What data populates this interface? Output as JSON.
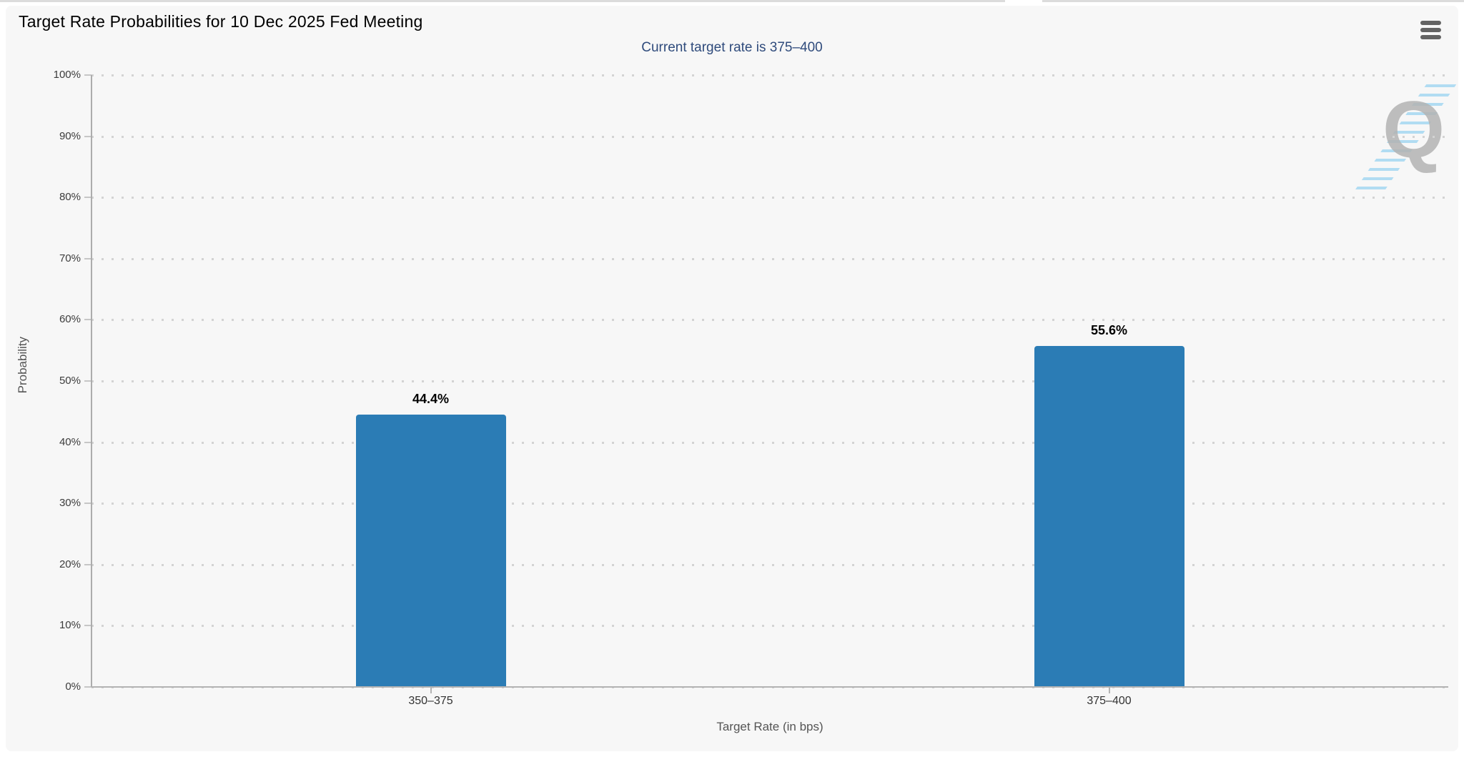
{
  "chart": {
    "title": "Target Rate Probabilities for 10 Dec 2025 Fed Meeting",
    "subtitle": "Current target rate is 375–400",
    "subtitle_color": "#2f4b7c",
    "y_axis_title": "Probability",
    "x_axis_title": "Target Rate (in bps)",
    "menu_icon": "hamburger-menu-icon",
    "watermark_letter": "Q"
  },
  "chart_data": {
    "type": "bar",
    "categories": [
      "350–375",
      "375–400"
    ],
    "values": [
      44.4,
      55.6
    ],
    "value_labels": [
      "44.4%",
      "55.6%"
    ],
    "title": "Target Rate Probabilities for 10 Dec 2025 Fed Meeting",
    "subtitle": "Current target rate is 375–400",
    "xlabel": "Target Rate (in bps)",
    "ylabel": "Probability",
    "ylim": [
      0,
      100
    ],
    "y_tick_step": 10,
    "y_tick_labels": [
      "0%",
      "10%",
      "20%",
      "30%",
      "40%",
      "50%",
      "60%",
      "70%",
      "80%",
      "90%",
      "100%"
    ],
    "grid": "horizontal-dotted",
    "legend": "none",
    "bar_color": "#2b7cb5"
  }
}
